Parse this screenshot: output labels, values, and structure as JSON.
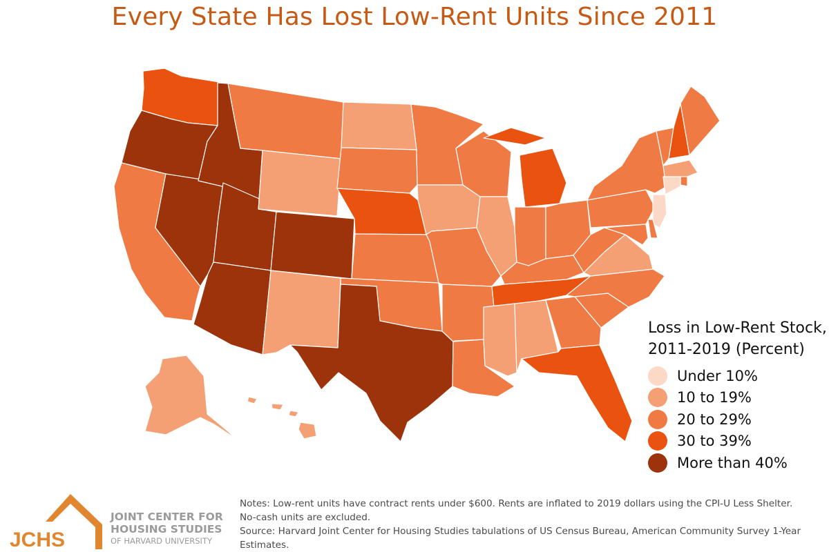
{
  "title": "Every State Has Lost Low-Rent Units Since 2011",
  "legend": {
    "title_line1": "Loss in Low-Rent Stock,",
    "title_line2": "2011-2019 (Percent)",
    "items": [
      {
        "label": "Under 10%",
        "color": "#fcd9c6"
      },
      {
        "label": "10 to 19%",
        "color": "#f5a074"
      },
      {
        "label": "20 to 29%",
        "color": "#f07a44"
      },
      {
        "label": "30 to 39%",
        "color": "#e9530f"
      },
      {
        "label": "More than 40%",
        "color": "#9c330b"
      }
    ]
  },
  "states": [
    {
      "id": "WA",
      "bin": 3
    },
    {
      "id": "OR",
      "bin": 4
    },
    {
      "id": "CA",
      "bin": 2
    },
    {
      "id": "NV",
      "bin": 4
    },
    {
      "id": "ID",
      "bin": 4
    },
    {
      "id": "MT",
      "bin": 2
    },
    {
      "id": "WY",
      "bin": 1
    },
    {
      "id": "UT",
      "bin": 4
    },
    {
      "id": "AZ",
      "bin": 4
    },
    {
      "id": "CO",
      "bin": 4
    },
    {
      "id": "NM",
      "bin": 1
    },
    {
      "id": "ND",
      "bin": 1
    },
    {
      "id": "SD",
      "bin": 2
    },
    {
      "id": "NE",
      "bin": 3
    },
    {
      "id": "KS",
      "bin": 2
    },
    {
      "id": "OK",
      "bin": 2
    },
    {
      "id": "TX",
      "bin": 4
    },
    {
      "id": "MN",
      "bin": 2
    },
    {
      "id": "IA",
      "bin": 1
    },
    {
      "id": "MO",
      "bin": 2
    },
    {
      "id": "AR",
      "bin": 2
    },
    {
      "id": "LA",
      "bin": 2
    },
    {
      "id": "WI",
      "bin": 2
    },
    {
      "id": "IL",
      "bin": 1
    },
    {
      "id": "MI",
      "bin": 3
    },
    {
      "id": "IN",
      "bin": 2
    },
    {
      "id": "OH",
      "bin": 2
    },
    {
      "id": "KY",
      "bin": 2
    },
    {
      "id": "TN",
      "bin": 3
    },
    {
      "id": "MS",
      "bin": 1
    },
    {
      "id": "AL",
      "bin": 1
    },
    {
      "id": "GA",
      "bin": 2
    },
    {
      "id": "FL",
      "bin": 3
    },
    {
      "id": "SC",
      "bin": 2
    },
    {
      "id": "NC",
      "bin": 2
    },
    {
      "id": "VA",
      "bin": 1
    },
    {
      "id": "WV",
      "bin": 2
    },
    {
      "id": "PA",
      "bin": 2
    },
    {
      "id": "NY",
      "bin": 2
    },
    {
      "id": "VT",
      "bin": 2
    },
    {
      "id": "NH",
      "bin": 3
    },
    {
      "id": "ME",
      "bin": 2
    },
    {
      "id": "MA",
      "bin": 1
    },
    {
      "id": "RI",
      "bin": 2
    },
    {
      "id": "CT",
      "bin": 0
    },
    {
      "id": "NJ",
      "bin": 0
    },
    {
      "id": "DE",
      "bin": 2
    },
    {
      "id": "MD",
      "bin": 2
    },
    {
      "id": "AK",
      "bin": 1
    },
    {
      "id": "HI",
      "bin": 1
    }
  ],
  "logo": {
    "abbr": "JCHS",
    "line1": "JOINT CENTER FOR",
    "line2": "HOUSING STUDIES",
    "line3": "OF HARVARD UNIVERSITY",
    "color": "#e0862f"
  },
  "notes": {
    "line1": "Notes: Low-rent units have contract rents under $600. Rents are inflated to 2019 dollars using the CPI-U Less Shelter.",
    "line2": "No-cash units are excluded.",
    "line3": "Source: Harvard Joint Center for Housing Studies tabulations of US Census Bureau, American Community Survey 1-Year",
    "line4": "Estimates."
  }
}
